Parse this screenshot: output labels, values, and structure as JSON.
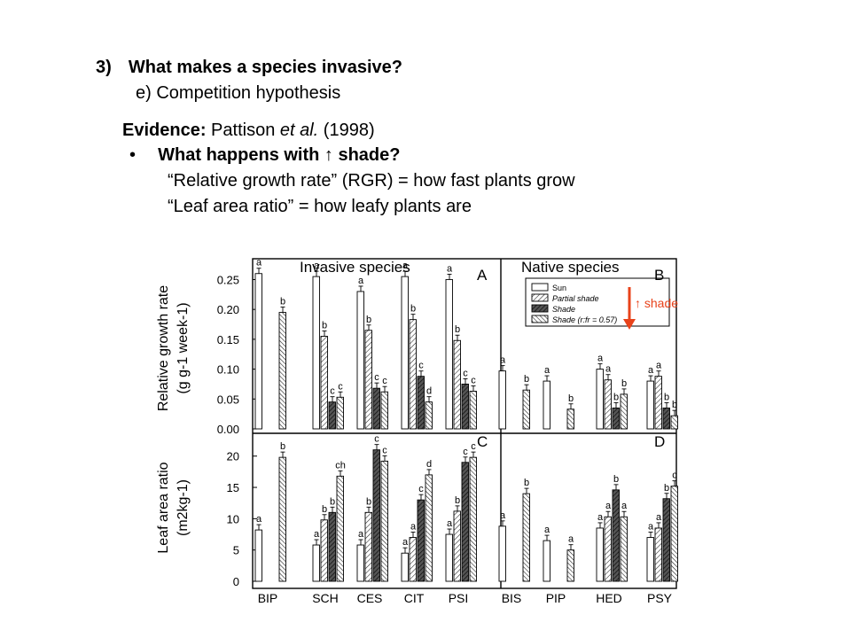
{
  "slide": {
    "heading_num": "3)",
    "heading": "What makes a species invasive?",
    "subheading": "e) Competition hypothesis",
    "evidence_label": "Evidence:",
    "evidence_pre": "Pattison",
    "evidence_italic": "et al.",
    "evidence_post": "(1998)",
    "bullet": "•",
    "question": "What happens with ↑ shade?",
    "rgr_def": "“Relative growth rate” (RGR) = how fast plants grow",
    "lar_def": "“Leaf area ratio” = how leafy plants are"
  },
  "annotation": {
    "text": "↑ shade",
    "color": "#e8421a"
  },
  "chart_data": {
    "type": "bar",
    "group_titles": [
      "Invasive species",
      "Native species"
    ],
    "categories": [
      "BIP",
      "SCH",
      "CES",
      "CIT",
      "PSI",
      "BIS",
      "PIP",
      "HED",
      "PSY"
    ],
    "legend": [
      "Sun",
      "Partial shade",
      "Shade",
      "Shade (r:fr = 0.57)"
    ],
    "legend_position": "top-right of panel B",
    "panels": [
      {
        "labels": [
          "A",
          "B"
        ],
        "ylabel_line1": "Relative growth rate",
        "ylabel_line2": "(g g-1 week-1)",
        "ylim": [
          0,
          0.27
        ],
        "yticks": [
          "0.00",
          "0.05",
          "0.10",
          "0.15",
          "0.20",
          "0.25"
        ],
        "ytick_values": [
          0,
          0.05,
          0.1,
          0.15,
          0.2,
          0.25
        ],
        "bars": [
          {
            "values": [
              0.26,
              null,
              null,
              0.195
            ],
            "letters": [
              "a",
              "",
              "",
              "b"
            ]
          },
          {
            "values": [
              0.255,
              0.155,
              0.045,
              0.053
            ],
            "letters": [
              "a",
              "b",
              "c",
              "c"
            ]
          },
          {
            "values": [
              0.23,
              0.165,
              0.068,
              0.062
            ],
            "letters": [
              "a",
              "b",
              "c",
              "c"
            ]
          },
          {
            "values": [
              0.255,
              0.183,
              0.088,
              0.045
            ],
            "letters": [
              "a",
              "b",
              "c",
              "d"
            ]
          },
          {
            "values": [
              0.25,
              0.148,
              0.075,
              0.063
            ],
            "letters": [
              "a",
              "b",
              "c",
              "c"
            ]
          },
          {
            "values": [
              0.097,
              null,
              null,
              0.065
            ],
            "letters": [
              "a",
              "",
              "",
              "b"
            ]
          },
          {
            "values": [
              0.08,
              null,
              null,
              0.033
            ],
            "letters": [
              "a",
              "",
              "",
              "b"
            ]
          },
          {
            "values": [
              0.1,
              0.082,
              0.035,
              0.058
            ],
            "letters": [
              "a",
              "a",
              "b",
              "b"
            ]
          },
          {
            "values": [
              0.08,
              0.088,
              0.035,
              0.022
            ],
            "letters": [
              "a",
              "a",
              "b",
              "b"
            ]
          }
        ]
      },
      {
        "labels": [
          "C",
          "D"
        ],
        "ylabel_line1": "Leaf area ratio",
        "ylabel_line2": "(m2kg-1)",
        "ylim": [
          0,
          23.5
        ],
        "yticks": [
          "0",
          "5",
          "10",
          "15",
          "20"
        ],
        "ytick_values": [
          0,
          5,
          10,
          15,
          20
        ],
        "bars": [
          {
            "values": [
              8.2,
              null,
              null,
              19.8
            ],
            "letters": [
              "a",
              "",
              "",
              "b"
            ]
          },
          {
            "values": [
              5.8,
              9.8,
              11,
              16.8
            ],
            "letters": [
              "a",
              "b",
              "b",
              "ch"
            ]
          },
          {
            "values": [
              5.8,
              11,
              21,
              19.2
            ],
            "letters": [
              "a",
              "b",
              "c",
              "c"
            ]
          },
          {
            "values": [
              4.5,
              7,
              13,
              17
            ],
            "letters": [
              "a",
              "a",
              "c",
              "d"
            ]
          },
          {
            "values": [
              7.5,
              11.2,
              19,
              19.8
            ],
            "letters": [
              "a",
              "b",
              "c",
              "c"
            ]
          },
          {
            "values": [
              8.8,
              null,
              null,
              14
            ],
            "letters": [
              "a",
              "",
              "",
              "b"
            ]
          },
          {
            "values": [
              6.5,
              null,
              null,
              5
            ],
            "letters": [
              "a",
              "",
              "",
              "a"
            ]
          },
          {
            "values": [
              8.5,
              10.3,
              14.6,
              10.3
            ],
            "letters": [
              "a",
              "a",
              "b",
              "a"
            ]
          },
          {
            "values": [
              7,
              8.5,
              13.2,
              15.2
            ],
            "letters": [
              "a",
              "a",
              "b",
              "c"
            ]
          }
        ]
      }
    ]
  }
}
